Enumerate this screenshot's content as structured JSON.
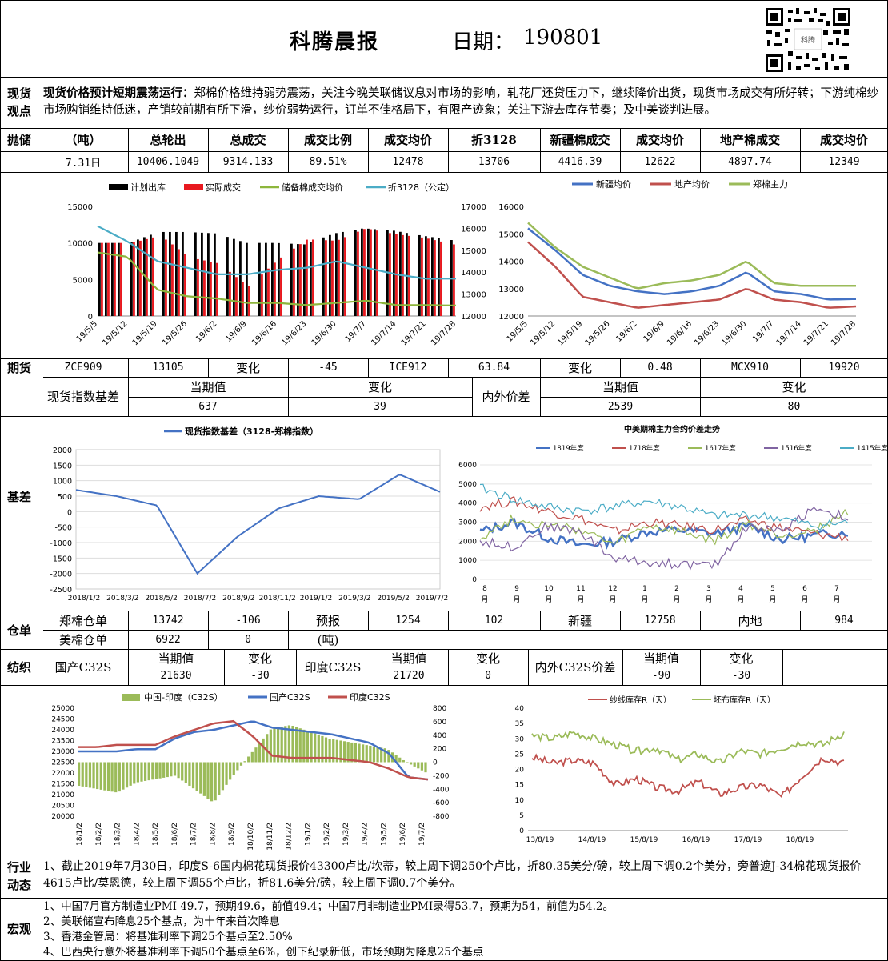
{
  "header": {
    "title": "科腾晨报",
    "date_label": "日期：",
    "date": "190801",
    "qr_caption": "科腾"
  },
  "spot_view": {
    "label": "现货观点",
    "bold": "现货价格预计短期震荡运行：",
    "text": "郑棉价格维持弱势震荡，关注今晚美联储议息对市场的影响，轧花厂还贷压力下，继续降价出货，现货市场成交有所好转；下游纯棉纱市场购销维持低迷，产销较前期有所下滑，纱价弱势运行，订单不佳格局下，有限产迹象；关注下游去库存节奏；及中美谈判进展。"
  },
  "auction": {
    "label": "抛储",
    "headers": [
      "（吨）",
      "总轮出",
      "总成交",
      "成交比例",
      "成交均价",
      "折3128",
      "新疆棉成交",
      "成交均价",
      "地产棉成交",
      "成交均价"
    ],
    "values": [
      "7.31日",
      "10406.1049",
      "9314.133",
      "89.51%",
      "12478",
      "13706",
      "4416.39",
      "12622",
      "4897.74",
      "12349"
    ]
  },
  "futures": {
    "label": "期货",
    "row": [
      "ZCE909",
      "13105",
      "变化",
      "-45",
      "ICE912",
      "63.84",
      "变化",
      "0.48",
      "MCX910",
      "19920"
    ],
    "sub_labels": [
      "现货指数基差",
      "内外价差"
    ],
    "sub_headers": [
      "当期值",
      "变化",
      "当期值",
      "变化"
    ],
    "sub_values": [
      "637",
      "39",
      "2539",
      "80"
    ]
  },
  "basis": {
    "label": "基差"
  },
  "warehouse": {
    "label": "仓单",
    "row1": [
      "郑棉仓单",
      "13742",
      "-106",
      "预报",
      "1254",
      "102",
      "新疆",
      "12758",
      "内地",
      "984"
    ],
    "row2": [
      "美棉仓单",
      "6922",
      "0",
      "(吨)"
    ]
  },
  "textile": {
    "label": "纺织",
    "items": [
      "国产C32S",
      "当期值",
      "变化",
      "印度C32S",
      "当期值",
      "变化",
      "内外C32S价差",
      "当期值",
      "变化"
    ],
    "values": [
      "21630",
      "-30",
      "21720",
      "0",
      "-90",
      "-30"
    ]
  },
  "industry": {
    "label": "行业动态",
    "text": "1、截止2019年7月30日，印度S-6国内棉花现货报价43300卢比/坎蒂，较上周下调250个卢比，折80.35美分/磅，较上周下调0.2个美分，旁普遮J-34棉花现货报价4615卢比/莫恩德，较上周下调55个卢比，折81.6美分/磅，较上周下调0.7个美分。"
  },
  "macro": {
    "label": "宏观",
    "items": [
      "1、中国7月官方制造业PMI 49.7，预期49.6，前值49.4；中国7月非制造业PMI录得53.7，预期为54，前值为54.2。",
      "2、美联储宣布降息25个基点，为十年来首次降息",
      "3、香港金管局：将基准利率下调25个基点至2.50%",
      "4、巴西央行意外将基准利率下调50个基点至6%，创下纪录新低，市场预期为降息25个基点"
    ]
  },
  "colors": {
    "plan": "#000000",
    "actual": "#e8191f",
    "reserve_avg": "#8db63c",
    "idx3128": "#4bacc6",
    "xinjiang": "#4472c4",
    "local": "#c0504d",
    "zce": "#9bbb59"
  },
  "chart_data": [
    {
      "type": "bar+line",
      "id": "auction",
      "series": [
        {
          "name": "计划出库"
        },
        {
          "name": "实际成交"
        },
        {
          "name": "储备棉成交均价"
        },
        {
          "name": "折3128（公定）"
        }
      ],
      "x": [
        "19/5/5",
        "19/5/12",
        "19/5/19",
        "19/5/26",
        "19/6/2",
        "19/6/9",
        "19/6/16",
        "19/6/23",
        "19/6/30",
        "19/7/7",
        "19/7/14",
        "19/7/21",
        "19/7/28"
      ],
      "ylim_left": [
        0,
        15000
      ],
      "yticks_left": [
        "0",
        "5000",
        "10000",
        "15000"
      ],
      "ylim_right": [
        12000,
        17000
      ],
      "yticks_right": [
        "12000",
        "13000",
        "14000",
        "15000",
        "16000",
        "17000"
      ],
      "plan_values": [
        10000,
        10000,
        11500,
        11500,
        11300,
        10000,
        10000,
        9800,
        11300,
        12000,
        11700,
        11000,
        10400
      ],
      "deal_values": [
        10000,
        10000,
        11000,
        8000,
        7200,
        4000,
        7700,
        10500,
        10300,
        12000,
        11200,
        10700,
        9800
      ],
      "avg_values": [
        14900,
        14700,
        13200,
        12900,
        12800,
        12600,
        12600,
        12500,
        12600,
        12700,
        12500,
        12500,
        12478
      ],
      "idx_values": [
        16100,
        15400,
        14500,
        14200,
        13900,
        13900,
        14100,
        14200,
        14500,
        14200,
        13900,
        13700,
        13706
      ]
    },
    {
      "type": "line",
      "id": "prices",
      "series": [
        {
          "name": "新疆均价"
        },
        {
          "name": "地产均价"
        },
        {
          "name": "郑棉主力"
        }
      ],
      "x": [
        "19/5/5",
        "19/5/12",
        "19/5/19",
        "19/5/26",
        "19/6/2",
        "19/6/9",
        "19/6/16",
        "19/6/23",
        "19/6/30",
        "19/7/7",
        "19/7/14",
        "19/7/21",
        "19/7/28"
      ],
      "ylim": [
        12000,
        16000
      ],
      "yticks": [
        "12000",
        "13000",
        "14000",
        "15000",
        "16000"
      ],
      "xinjiang": [
        15200,
        14400,
        13500,
        13100,
        12900,
        12800,
        12900,
        13100,
        13600,
        12900,
        12800,
        12600,
        12622
      ],
      "local": [
        14700,
        13800,
        12700,
        12500,
        12300,
        12400,
        12500,
        12600,
        13000,
        12600,
        12500,
        12300,
        12349
      ],
      "zce": [
        15400,
        14500,
        13800,
        13400,
        13000,
        13200,
        13300,
        13500,
        14000,
        13200,
        13100,
        13100,
        13105
      ]
    },
    {
      "type": "line",
      "id": "basis",
      "series": [
        {
          "name": "现货指数基差（3128-郑棉指数）"
        }
      ],
      "x": [
        "2018/1/2",
        "2018/3/2",
        "2018/5/2",
        "2018/7/2",
        "2018/9/2",
        "2018/11/2",
        "2019/1/2",
        "2019/3/2",
        "2019/5/2",
        "2019/7/2"
      ],
      "ylim": [
        -2500,
        2000
      ],
      "yticks": [
        "2000",
        "1500",
        "1000",
        "500",
        "0",
        "-500",
        "-1000",
        "-1500",
        "-2000",
        "-2500"
      ],
      "values": [
        700,
        500,
        200,
        -2000,
        -800,
        100,
        500,
        400,
        1200,
        637
      ]
    },
    {
      "type": "line",
      "id": "spread",
      "title": "中美期棉主力合约价差走势",
      "series": [
        {
          "name": "1819年度"
        },
        {
          "name": "1718年度"
        },
        {
          "name": "1617年度"
        },
        {
          "name": "1516年度"
        },
        {
          "name": "1415年度"
        }
      ],
      "x": [
        "8月",
        "9月",
        "10月",
        "11月",
        "12月",
        "1月",
        "2月",
        "3月",
        "4月",
        "5月",
        "6月",
        "7月"
      ],
      "ylim": [
        0,
        6000
      ],
      "yticks": [
        "6000",
        "5000",
        "4000",
        "3000",
        "2000",
        "1000",
        "0"
      ]
    },
    {
      "type": "bar+line",
      "id": "c32s",
      "series": [
        {
          "name": "中国-印度（C32S）"
        },
        {
          "name": "国产C32S"
        },
        {
          "name": "印度C32S"
        }
      ],
      "x": [
        "18/1/2",
        "18/2/2",
        "18/3/2",
        "18/4/2",
        "18/5/2",
        "18/6/2",
        "18/7/2",
        "18/8/2",
        "18/9/2",
        "18/10/2",
        "18/11/2",
        "18/12/2",
        "19/1/2",
        "19/2/2",
        "19/3/2",
        "19/4/2",
        "19/5/2",
        "19/6/2",
        "19/7/2"
      ],
      "ylim_left": [
        20000,
        25000
      ],
      "yticks_left": [
        "25000",
        "24500",
        "24000",
        "23500",
        "23000",
        "22500",
        "22000",
        "21500",
        "21000",
        "20500",
        "20000"
      ],
      "ylim_right": [
        -800,
        800
      ],
      "yticks_right": [
        "800",
        "600",
        "400",
        "200",
        "0",
        "-200",
        "-400",
        "-600",
        "-800"
      ]
    },
    {
      "type": "line",
      "id": "inventory",
      "series": [
        {
          "name": "纱线库存R（天）"
        },
        {
          "name": "坯布库存R（天）"
        }
      ],
      "x": [
        "13/8/19",
        "14/8/19",
        "15/8/19",
        "16/8/19",
        "17/8/19",
        "18/8/19"
      ],
      "ylim": [
        0,
        40
      ],
      "yticks": [
        "40",
        "35",
        "30",
        "25",
        "20",
        "15",
        "10",
        "5",
        "0"
      ]
    }
  ]
}
